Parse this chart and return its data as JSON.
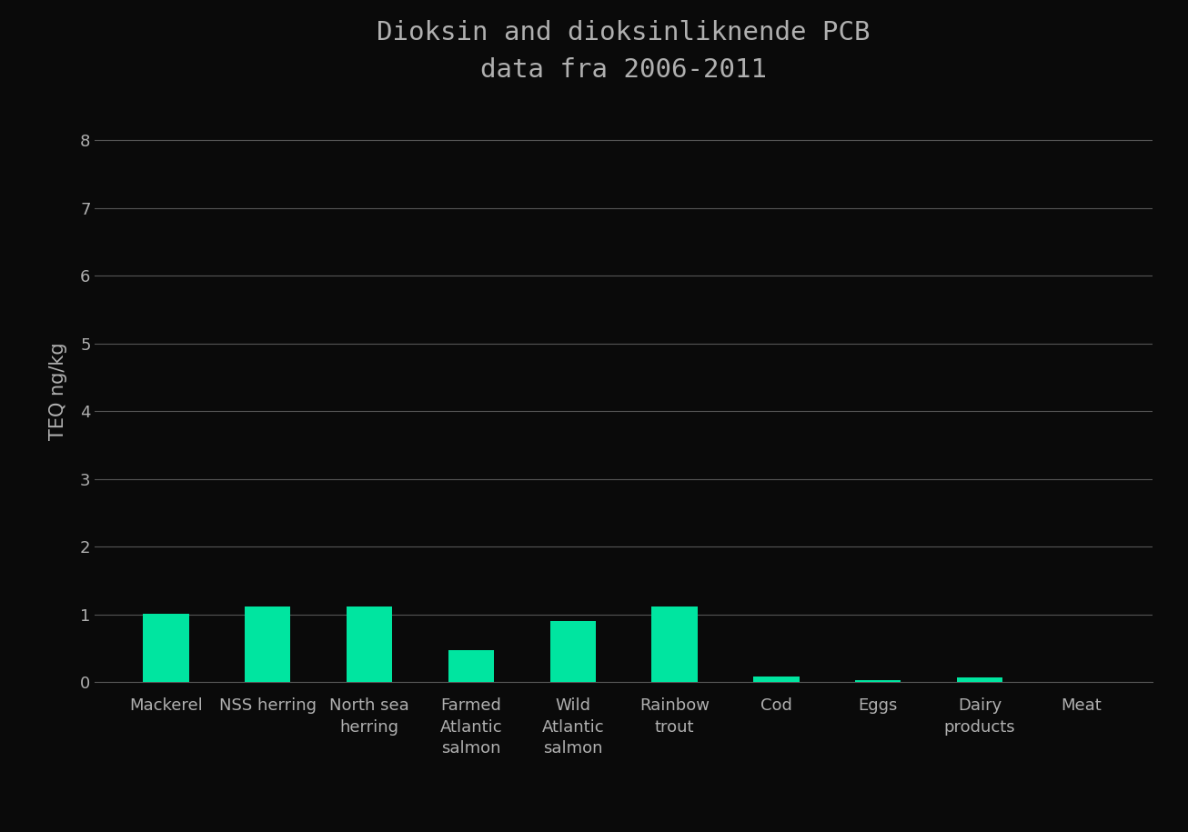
{
  "title_line1": "Dioksin and dioksinliknende PCB",
  "title_line2": "data fra 2006-2011",
  "ylabel": "TEQ ng/kg",
  "categories": [
    "Mackerel",
    "NSS herring",
    "North sea\nherring",
    "Farmed\nAtlantic\nsalmon",
    "Wild\nAtlantic\nsalmon",
    "Rainbow\ntrout",
    "Cod",
    "Eggs",
    "Dairy\nproducts",
    "Meat"
  ],
  "values": [
    1.01,
    1.12,
    1.12,
    0.48,
    0.9,
    1.12,
    0.08,
    0.03,
    0.07,
    0.01
  ],
  "bar_color": "#00e5a0",
  "background_color": "#0a0a0a",
  "text_color": "#b0b0b0",
  "grid_color": "#555555",
  "ylim": [
    0,
    8.6
  ],
  "yticks": [
    0,
    1,
    2,
    3,
    4,
    5,
    6,
    7,
    8
  ],
  "title_fontsize": 21,
  "axis_label_fontsize": 15,
  "tick_fontsize": 13,
  "bar_width": 0.45
}
